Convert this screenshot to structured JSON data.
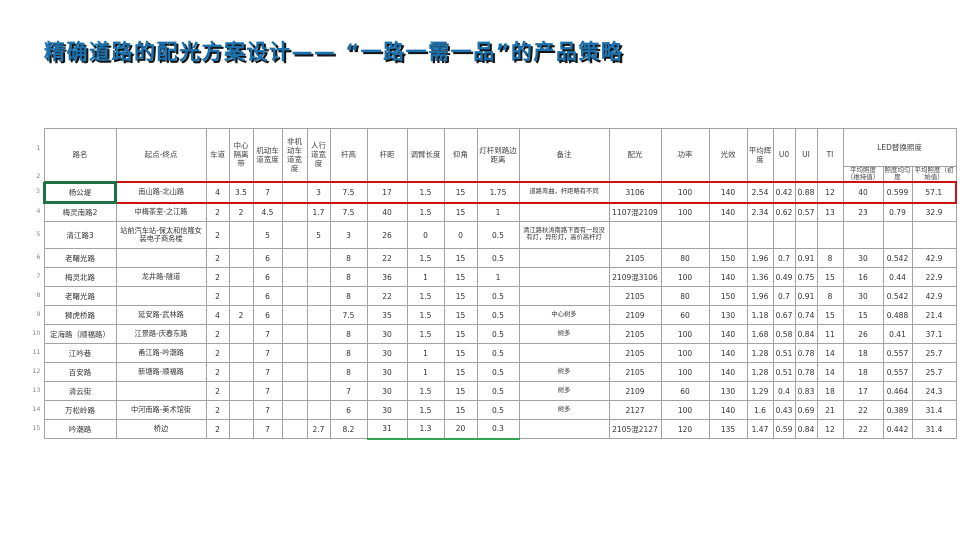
{
  "slide": {
    "title": "精确道路的配光方案设计—— “一路一需一品”的产品策略"
  },
  "colors": {
    "title_blue": "#1a71ad",
    "highlight_red": "#cc1111",
    "selection_green": "#1e7145",
    "grid_gray": "#a3a3a3"
  },
  "table": {
    "row_numbers": [
      "1",
      "2",
      "3",
      "4",
      "5",
      "6",
      "7",
      "8",
      "9",
      "10",
      "11",
      "12",
      "13",
      "14",
      "15"
    ],
    "columns": [
      "路名",
      "起点-终点",
      "车道",
      "中心隔离带",
      "机动车道宽度",
      "非机动车道宽度",
      "人行道宽度",
      "杆高",
      "杆距",
      "调臂长度",
      "仰角",
      "灯杆到路边距离",
      "备注",
      "配光",
      "功率",
      "光效",
      "平均辉度",
      "U0",
      "UI",
      "TI"
    ],
    "led_group": "LED替换照度",
    "led_subcolumns": [
      "平均照度（维持值）",
      "照度均匀度",
      "平均照度（初始值）"
    ],
    "rows": [
      {
        "cells": [
          "杨公堤",
          "南山路-北山路",
          "4",
          "3.5",
          "7",
          "",
          "3",
          "7.5",
          "17",
          "1.5",
          "15",
          "1.75",
          "道路弯曲，杆距略有不同",
          "3106",
          "100",
          "140",
          "2.54",
          "0.42",
          "0.88",
          "12",
          "40",
          "0.599",
          "57.1"
        ]
      },
      {
        "cells": [
          "梅灵南路2",
          "中梅茶室-之江路",
          "2",
          "2",
          "4.5",
          "",
          "1.7",
          "7.5",
          "40",
          "1.5",
          "15",
          "1",
          "",
          "1107混2109",
          "100",
          "140",
          "2.34",
          "0.62",
          "0.57",
          "13",
          "23",
          "0.79",
          "32.9"
        ]
      },
      {
        "cells": [
          "清江路3",
          "站前汽车站-保太和信隆女装电子商务楼",
          "2",
          "",
          "5",
          "",
          "5",
          "3",
          "26",
          "0",
          "0",
          "0.5",
          "清江路秋涛南路下面有一段没有灯，异形灯，高价高杆灯",
          "",
          "",
          "",
          "",
          "",
          "",
          "",
          "",
          "",
          ""
        ]
      },
      {
        "cells": [
          "老曙光路",
          "",
          "2",
          "",
          "6",
          "",
          "",
          "8",
          "22",
          "1.5",
          "15",
          "0.5",
          "",
          "2105",
          "80",
          "150",
          "1.96",
          "0.7",
          "0.91",
          "8",
          "30",
          "0.542",
          "42.9"
        ]
      },
      {
        "cells": [
          "梅灵北路",
          "龙井路-隧道",
          "2",
          "",
          "6",
          "",
          "",
          "8",
          "36",
          "1",
          "15",
          "1",
          "",
          "2109混3106",
          "100",
          "140",
          "1.36",
          "0.49",
          "0.75",
          "15",
          "16",
          "0.44",
          "22.9"
        ]
      },
      {
        "cells": [
          "老曙光路",
          "",
          "2",
          "",
          "6",
          "",
          "",
          "8",
          "22",
          "1.5",
          "15",
          "0.5",
          "",
          "2105",
          "80",
          "150",
          "1.96",
          "0.7",
          "0.91",
          "8",
          "30",
          "0.542",
          "42.9"
        ]
      },
      {
        "cells": [
          "狮虎桥路",
          "延安路-武林路",
          "4",
          "2",
          "6",
          "",
          "",
          "7.5",
          "35",
          "1.5",
          "15",
          "0.5",
          "中心树多",
          "2109",
          "60",
          "130",
          "1.18",
          "0.67",
          "0.74",
          "15",
          "15",
          "0.488",
          "21.4"
        ]
      },
      {
        "cells": [
          "定海路（顺福路）",
          "江景路-庆春东路",
          "2",
          "",
          "7",
          "",
          "",
          "8",
          "30",
          "1.5",
          "15",
          "0.5",
          "树多",
          "2105",
          "100",
          "140",
          "1.68",
          "0.58",
          "0.84",
          "11",
          "26",
          "0.41",
          "37.1"
        ]
      },
      {
        "cells": [
          "江吟巷",
          "甬江路-吟潮路",
          "2",
          "",
          "7",
          "",
          "",
          "8",
          "30",
          "1",
          "15",
          "0.5",
          "",
          "2105",
          "100",
          "140",
          "1.28",
          "0.51",
          "0.78",
          "14",
          "18",
          "0.557",
          "25.7"
        ]
      },
      {
        "cells": [
          "百安路",
          "新塘路-顺福路",
          "2",
          "",
          "7",
          "",
          "",
          "8",
          "30",
          "1",
          "15",
          "0.5",
          "树多",
          "2105",
          "100",
          "140",
          "1.28",
          "0.51",
          "0.78",
          "14",
          "18",
          "0.557",
          "25.7"
        ]
      },
      {
        "cells": [
          "清云街",
          "",
          "2",
          "",
          "7",
          "",
          "",
          "7",
          "30",
          "1.5",
          "15",
          "0.5",
          "树多",
          "2109",
          "60",
          "130",
          "1.29",
          "0.4",
          "0.83",
          "18",
          "17",
          "0.464",
          "24.3"
        ]
      },
      {
        "cells": [
          "万松岭路",
          "中河南路-美术馆街",
          "2",
          "",
          "7",
          "",
          "",
          "6",
          "30",
          "1.5",
          "15",
          "0.5",
          "树多",
          "2127",
          "100",
          "140",
          "1.6",
          "0.43",
          "0.69",
          "21",
          "22",
          "0.389",
          "31.4"
        ]
      },
      {
        "cells": [
          "吟潮路",
          "桥边",
          "2",
          "",
          "7",
          "",
          "2.7",
          "8.2",
          "31",
          "1.3",
          "20",
          "0.3",
          "",
          "2105混2127",
          "120",
          "135",
          "1.47",
          "0.59",
          "0.84",
          "12",
          "22",
          "0.442",
          "31.4"
        ]
      }
    ]
  }
}
